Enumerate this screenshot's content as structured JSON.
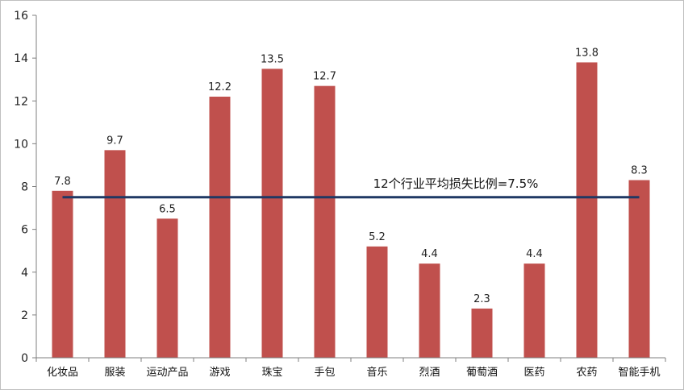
{
  "chart_data": {
    "type": "bar",
    "title": "",
    "xlabel": "",
    "ylabel": "",
    "categories": [
      "化妆品",
      "服装",
      "运动产品",
      "游戏",
      "珠宝",
      "手包",
      "音乐",
      "烈酒",
      "葡萄酒",
      "医药",
      "农药",
      "智能手机"
    ],
    "values": [
      7.8,
      9.7,
      6.5,
      12.2,
      13.5,
      12.7,
      5.2,
      4.4,
      2.3,
      4.4,
      13.8,
      8.3
    ],
    "ylim": [
      0,
      16
    ],
    "yticks": [
      0,
      2,
      4,
      6,
      8,
      10,
      12,
      14,
      16
    ],
    "grid": false,
    "legend": "none",
    "reference_line": {
      "value": 7.5,
      "label": "12个行业平均损失比例=7.5%"
    },
    "colors": {
      "bar": "#c0504d",
      "reference_line": "#1f3864",
      "axis": "#7f7f7f"
    }
  }
}
